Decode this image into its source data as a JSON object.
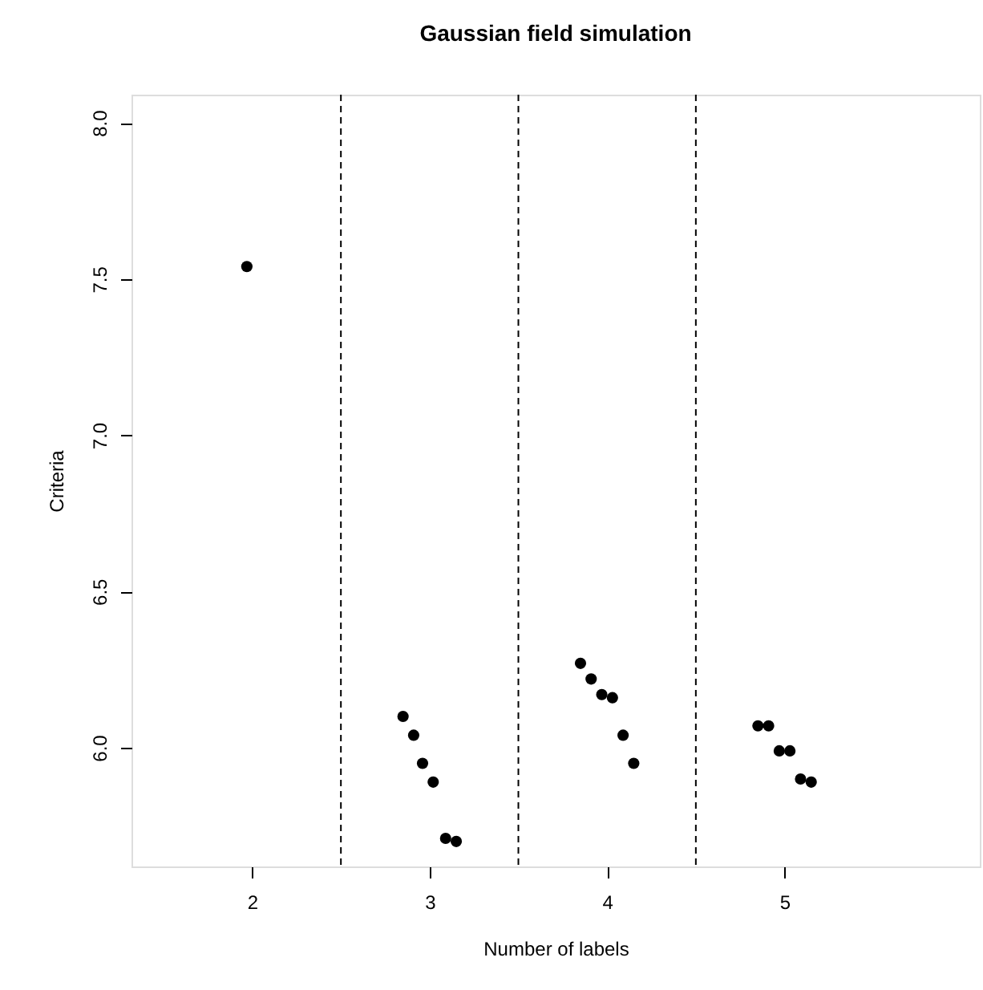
{
  "chart_data": {
    "type": "scatter",
    "title": "Gaussian field simulation",
    "xlabel": "Number of labels",
    "ylabel": "Criteria",
    "x": [
      1.97,
      2.85,
      2.91,
      2.96,
      3.02,
      3.09,
      3.15,
      3.85,
      3.91,
      3.97,
      4.03,
      4.09,
      4.15,
      4.85,
      4.91,
      4.97,
      5.03,
      5.09,
      5.15
    ],
    "series": [
      {
        "color": "#000000",
        "values": [
          7.54,
          6.1,
          6.04,
          5.95,
          5.89,
          5.71,
          5.7,
          6.27,
          6.22,
          6.17,
          6.16,
          6.04,
          5.95,
          6.07,
          6.07,
          5.99,
          5.99,
          5.9,
          5.89
        ]
      }
    ],
    "xlim": [
      1.32,
      6.1
    ],
    "ylim": [
      5.62,
      8.09
    ],
    "xticks": [
      2,
      3,
      4,
      5
    ],
    "yticks": [
      {
        "value": 6,
        "label": "6.0"
      },
      {
        "value": 6.5,
        "label": "6.5"
      },
      {
        "value": 7,
        "label": "7.0"
      },
      {
        "value": 7.5,
        "label": "7.5"
      },
      {
        "value": 8,
        "label": "8.0"
      }
    ],
    "ref_lines": [
      {
        "axis": "x",
        "value": 2.5,
        "line_style": "dashed"
      },
      {
        "axis": "x",
        "value": 3.5,
        "line_style": "dashed"
      },
      {
        "axis": "x",
        "value": 4.5,
        "line_style": "dashed"
      }
    ],
    "grid": false,
    "marker": "circle"
  }
}
